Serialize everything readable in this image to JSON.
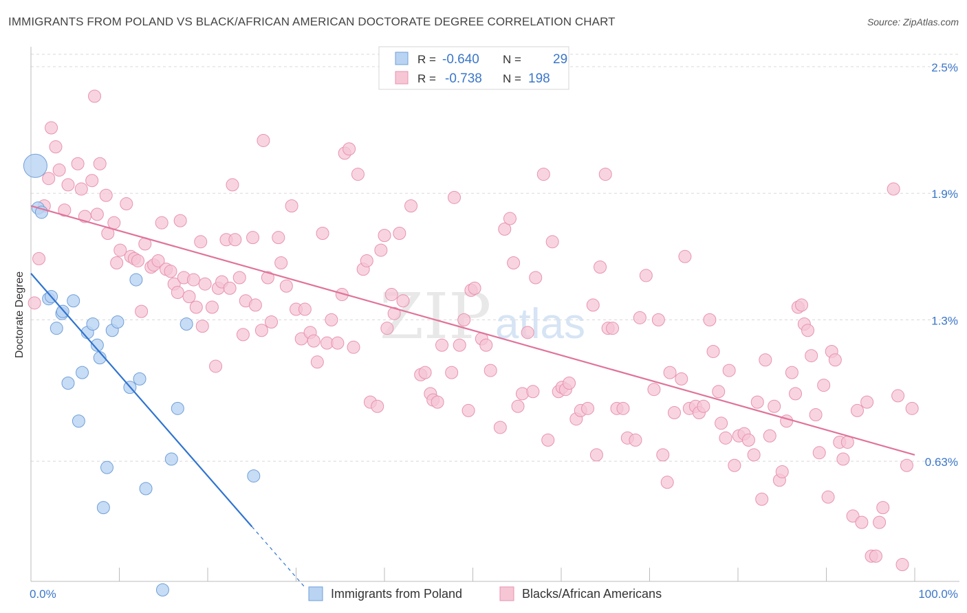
{
  "title": "IMMIGRANTS FROM POLAND VS BLACK/AFRICAN AMERICAN DOCTORATE DEGREE CORRELATION CHART",
  "source": "Source: ZipAtlas.com",
  "watermark": {
    "zip": "ZIP",
    "atlas": "atlas"
  },
  "colors": {
    "poland_fill": "#b9d3f2",
    "poland_stroke": "#6f9fd8",
    "poland_line": "#2f74d0",
    "black_fill": "#f6c6d5",
    "black_stroke": "#e893ae",
    "black_line": "#e0739b",
    "value_text": "#3a76c9",
    "grid": "#d8d8d8"
  },
  "legend": {
    "rows": [
      {
        "r_label": "R =",
        "r_value": "-0.640",
        "n_label": "N =",
        "n_value": "29"
      },
      {
        "r_label": "R =",
        "r_value": "-0.738",
        "n_label": "N =",
        "n_value": "198"
      }
    ]
  },
  "chart_data": {
    "type": "scatter",
    "title": "IMMIGRANTS FROM POLAND VS BLACK/AFRICAN AMERICAN DOCTORATE DEGREE CORRELATION CHART",
    "xlabel": "",
    "ylabel": "Doctorate Degree",
    "xlim": [
      0,
      100
    ],
    "ylim": [
      0,
      2.6
    ],
    "x_tick_labels": [
      "0.0%",
      "100.0%"
    ],
    "y_ticks": [
      0.63,
      1.3,
      1.9,
      2.5
    ],
    "y_tick_labels": [
      "0.63%",
      "1.3%",
      "1.9%",
      "2.5%"
    ],
    "legend_position": "bottom",
    "series": [
      {
        "name": "Immigrants from Poland",
        "r": -0.64,
        "n": 29,
        "trend": {
          "x0": 0,
          "y0": 1.52,
          "x1": 25,
          "y1": 0.32,
          "dash_to_x": 31
        },
        "points": [
          {
            "x": 0.5,
            "y": 2.03,
            "s": 17
          },
          {
            "x": 0.8,
            "y": 1.83,
            "s": 9
          },
          {
            "x": 1.2,
            "y": 1.81,
            "s": 9
          },
          {
            "x": 2.0,
            "y": 1.4,
            "s": 9
          },
          {
            "x": 2.3,
            "y": 1.41,
            "s": 9
          },
          {
            "x": 2.9,
            "y": 1.26,
            "s": 9
          },
          {
            "x": 3.5,
            "y": 1.33,
            "s": 9
          },
          {
            "x": 3.6,
            "y": 1.34,
            "s": 9
          },
          {
            "x": 4.2,
            "y": 1.0,
            "s": 9
          },
          {
            "x": 4.8,
            "y": 1.39,
            "s": 9
          },
          {
            "x": 5.4,
            "y": 0.82,
            "s": 9
          },
          {
            "x": 5.8,
            "y": 1.05,
            "s": 9
          },
          {
            "x": 6.4,
            "y": 1.24,
            "s": 9
          },
          {
            "x": 7.0,
            "y": 1.28,
            "s": 9
          },
          {
            "x": 7.5,
            "y": 1.18,
            "s": 9
          },
          {
            "x": 7.8,
            "y": 1.12,
            "s": 9
          },
          {
            "x": 8.2,
            "y": 0.41,
            "s": 9
          },
          {
            "x": 8.6,
            "y": 0.6,
            "s": 9
          },
          {
            "x": 9.2,
            "y": 1.25,
            "s": 9
          },
          {
            "x": 9.8,
            "y": 1.29,
            "s": 9
          },
          {
            "x": 11.2,
            "y": 0.98,
            "s": 9
          },
          {
            "x": 11.9,
            "y": 1.49,
            "s": 9
          },
          {
            "x": 12.3,
            "y": 1.02,
            "s": 9
          },
          {
            "x": 13.0,
            "y": 0.5,
            "s": 9
          },
          {
            "x": 14.9,
            "y": 0.02,
            "s": 9
          },
          {
            "x": 15.9,
            "y": 0.64,
            "s": 9
          },
          {
            "x": 16.6,
            "y": 0.88,
            "s": 9
          },
          {
            "x": 17.6,
            "y": 1.28,
            "s": 9
          },
          {
            "x": 25.2,
            "y": 0.56,
            "s": 9
          }
        ]
      },
      {
        "name": "Blacks/African Americans",
        "r": -0.738,
        "n": 198,
        "trend": {
          "x0": 0,
          "y0": 1.84,
          "x1": 100,
          "y1": 0.66
        },
        "points": [
          {
            "x": 0.4,
            "y": 1.38
          },
          {
            "x": 0.9,
            "y": 1.59
          },
          {
            "x": 1.5,
            "y": 1.84
          },
          {
            "x": 2.0,
            "y": 1.97
          },
          {
            "x": 2.3,
            "y": 2.21
          },
          {
            "x": 2.8,
            "y": 2.12
          },
          {
            "x": 3.2,
            "y": 2.01
          },
          {
            "x": 3.8,
            "y": 1.82
          },
          {
            "x": 4.2,
            "y": 1.94
          },
          {
            "x": 5.3,
            "y": 2.04
          },
          {
            "x": 5.7,
            "y": 1.92
          },
          {
            "x": 6.1,
            "y": 1.79
          },
          {
            "x": 6.9,
            "y": 1.96
          },
          {
            "x": 7.2,
            "y": 2.36
          },
          {
            "x": 7.5,
            "y": 1.8
          },
          {
            "x": 7.8,
            "y": 2.04
          },
          {
            "x": 8.5,
            "y": 1.89
          },
          {
            "x": 8.7,
            "y": 1.71
          },
          {
            "x": 9.4,
            "y": 1.76
          },
          {
            "x": 9.7,
            "y": 1.57
          },
          {
            "x": 10.1,
            "y": 1.63
          },
          {
            "x": 10.8,
            "y": 1.85
          },
          {
            "x": 11.3,
            "y": 1.6
          },
          {
            "x": 11.7,
            "y": 1.59
          },
          {
            "x": 12.1,
            "y": 1.58
          },
          {
            "x": 12.5,
            "y": 1.34
          },
          {
            "x": 12.9,
            "y": 1.66
          },
          {
            "x": 13.6,
            "y": 1.55
          },
          {
            "x": 13.9,
            "y": 1.56
          },
          {
            "x": 14.4,
            "y": 1.58
          },
          {
            "x": 14.8,
            "y": 1.76
          },
          {
            "x": 15.3,
            "y": 1.54
          },
          {
            "x": 15.8,
            "y": 1.53
          },
          {
            "x": 16.2,
            "y": 1.47
          },
          {
            "x": 16.6,
            "y": 1.43
          },
          {
            "x": 16.9,
            "y": 1.77
          },
          {
            "x": 17.3,
            "y": 1.5
          },
          {
            "x": 17.9,
            "y": 1.41
          },
          {
            "x": 18.4,
            "y": 1.49
          },
          {
            "x": 18.7,
            "y": 1.36
          },
          {
            "x": 19.2,
            "y": 1.67
          },
          {
            "x": 19.4,
            "y": 1.27
          },
          {
            "x": 19.7,
            "y": 1.47
          },
          {
            "x": 20.5,
            "y": 1.36
          },
          {
            "x": 20.9,
            "y": 1.08
          },
          {
            "x": 21.2,
            "y": 1.45
          },
          {
            "x": 21.6,
            "y": 1.48
          },
          {
            "x": 22.1,
            "y": 1.68
          },
          {
            "x": 22.5,
            "y": 1.45
          },
          {
            "x": 22.8,
            "y": 1.94
          },
          {
            "x": 23.1,
            "y": 1.68
          },
          {
            "x": 23.6,
            "y": 1.5
          },
          {
            "x": 24.0,
            "y": 1.23
          },
          {
            "x": 24.3,
            "y": 1.39
          },
          {
            "x": 25.1,
            "y": 1.69
          },
          {
            "x": 25.4,
            "y": 1.37
          },
          {
            "x": 26.1,
            "y": 1.25
          },
          {
            "x": 26.3,
            "y": 2.15
          },
          {
            "x": 26.8,
            "y": 1.5
          },
          {
            "x": 27.2,
            "y": 1.29
          },
          {
            "x": 28.0,
            "y": 1.69
          },
          {
            "x": 28.3,
            "y": 1.57
          },
          {
            "x": 28.9,
            "y": 1.46
          },
          {
            "x": 29.5,
            "y": 1.84
          },
          {
            "x": 30.0,
            "y": 1.35
          },
          {
            "x": 30.6,
            "y": 1.21
          },
          {
            "x": 31.0,
            "y": 1.35
          },
          {
            "x": 31.6,
            "y": 1.24
          },
          {
            "x": 32.0,
            "y": 1.2
          },
          {
            "x": 32.4,
            "y": 1.1
          },
          {
            "x": 33.0,
            "y": 1.71
          },
          {
            "x": 33.5,
            "y": 1.19
          },
          {
            "x": 34.0,
            "y": 1.3
          },
          {
            "x": 34.7,
            "y": 1.19
          },
          {
            "x": 35.2,
            "y": 1.42
          },
          {
            "x": 35.5,
            "y": 2.09
          },
          {
            "x": 36.0,
            "y": 2.11
          },
          {
            "x": 36.5,
            "y": 1.17
          },
          {
            "x": 37.0,
            "y": 1.99
          },
          {
            "x": 37.6,
            "y": 1.54
          },
          {
            "x": 38.0,
            "y": 1.58
          },
          {
            "x": 38.4,
            "y": 0.91
          },
          {
            "x": 39.2,
            "y": 0.89
          },
          {
            "x": 39.6,
            "y": 1.63
          },
          {
            "x": 40.0,
            "y": 1.7
          },
          {
            "x": 40.3,
            "y": 1.26
          },
          {
            "x": 40.8,
            "y": 1.42
          },
          {
            "x": 41.1,
            "y": 1.33
          },
          {
            "x": 41.7,
            "y": 1.71
          },
          {
            "x": 42.1,
            "y": 1.39
          },
          {
            "x": 43.0,
            "y": 1.84
          },
          {
            "x": 44.1,
            "y": 1.04
          },
          {
            "x": 44.6,
            "y": 1.05
          },
          {
            "x": 45.2,
            "y": 0.95
          },
          {
            "x": 45.5,
            "y": 0.92
          },
          {
            "x": 46.0,
            "y": 0.91
          },
          {
            "x": 46.5,
            "y": 1.18
          },
          {
            "x": 47.6,
            "y": 1.05
          },
          {
            "x": 47.9,
            "y": 1.88
          },
          {
            "x": 48.5,
            "y": 1.18
          },
          {
            "x": 49.0,
            "y": 1.3
          },
          {
            "x": 49.5,
            "y": 0.87
          },
          {
            "x": 49.8,
            "y": 1.44
          },
          {
            "x": 50.2,
            "y": 1.45
          },
          {
            "x": 51.0,
            "y": 1.21
          },
          {
            "x": 51.5,
            "y": 1.18
          },
          {
            "x": 52.0,
            "y": 1.06
          },
          {
            "x": 53.1,
            "y": 0.79
          },
          {
            "x": 53.6,
            "y": 1.73
          },
          {
            "x": 54.2,
            "y": 1.78
          },
          {
            "x": 54.6,
            "y": 1.57
          },
          {
            "x": 55.1,
            "y": 0.89
          },
          {
            "x": 55.6,
            "y": 0.95
          },
          {
            "x": 56.2,
            "y": 1.24
          },
          {
            "x": 56.8,
            "y": 0.96
          },
          {
            "x": 57.1,
            "y": 1.5
          },
          {
            "x": 58.0,
            "y": 1.99
          },
          {
            "x": 58.5,
            "y": 0.73
          },
          {
            "x": 59.0,
            "y": 1.67
          },
          {
            "x": 59.7,
            "y": 0.96
          },
          {
            "x": 60.1,
            "y": 0.98
          },
          {
            "x": 60.5,
            "y": 0.97
          },
          {
            "x": 60.9,
            "y": 1.0
          },
          {
            "x": 61.7,
            "y": 0.83
          },
          {
            "x": 62.2,
            "y": 0.87
          },
          {
            "x": 63.0,
            "y": 0.88
          },
          {
            "x": 63.6,
            "y": 1.37
          },
          {
            "x": 64.0,
            "y": 0.66
          },
          {
            "x": 64.4,
            "y": 1.55
          },
          {
            "x": 65.0,
            "y": 1.99
          },
          {
            "x": 65.3,
            "y": 1.26
          },
          {
            "x": 65.8,
            "y": 1.26
          },
          {
            "x": 66.3,
            "y": 0.88
          },
          {
            "x": 67.0,
            "y": 0.88
          },
          {
            "x": 67.5,
            "y": 0.74
          },
          {
            "x": 68.4,
            "y": 0.73
          },
          {
            "x": 68.9,
            "y": 1.31
          },
          {
            "x": 69.6,
            "y": 1.51
          },
          {
            "x": 70.5,
            "y": 0.97
          },
          {
            "x": 71.0,
            "y": 1.3
          },
          {
            "x": 71.5,
            "y": 0.66
          },
          {
            "x": 72.0,
            "y": 0.53
          },
          {
            "x": 72.3,
            "y": 1.05
          },
          {
            "x": 72.8,
            "y": 0.86
          },
          {
            "x": 73.6,
            "y": 1.02
          },
          {
            "x": 74.0,
            "y": 1.6
          },
          {
            "x": 74.5,
            "y": 0.88
          },
          {
            "x": 75.2,
            "y": 0.89
          },
          {
            "x": 75.6,
            "y": 0.86
          },
          {
            "x": 76.1,
            "y": 0.89
          },
          {
            "x": 76.8,
            "y": 1.3
          },
          {
            "x": 77.2,
            "y": 1.15
          },
          {
            "x": 77.8,
            "y": 0.96
          },
          {
            "x": 78.1,
            "y": 0.81
          },
          {
            "x": 78.6,
            "y": 0.74
          },
          {
            "x": 79.0,
            "y": 1.06
          },
          {
            "x": 79.6,
            "y": 0.61
          },
          {
            "x": 80.1,
            "y": 0.75
          },
          {
            "x": 80.7,
            "y": 0.76
          },
          {
            "x": 81.2,
            "y": 0.73
          },
          {
            "x": 81.8,
            "y": 0.66
          },
          {
            "x": 82.2,
            "y": 0.91
          },
          {
            "x": 82.7,
            "y": 0.45
          },
          {
            "x": 83.1,
            "y": 1.11
          },
          {
            "x": 83.6,
            "y": 0.75
          },
          {
            "x": 84.1,
            "y": 0.89
          },
          {
            "x": 84.7,
            "y": 0.54
          },
          {
            "x": 85.0,
            "y": 0.58
          },
          {
            "x": 85.5,
            "y": 0.82
          },
          {
            "x": 86.1,
            "y": 1.05
          },
          {
            "x": 86.5,
            "y": 0.95
          },
          {
            "x": 86.8,
            "y": 1.36
          },
          {
            "x": 87.2,
            "y": 1.37
          },
          {
            "x": 87.5,
            "y": 1.28
          },
          {
            "x": 87.9,
            "y": 1.25
          },
          {
            "x": 88.3,
            "y": 1.13
          },
          {
            "x": 88.8,
            "y": 0.85
          },
          {
            "x": 89.2,
            "y": 0.67
          },
          {
            "x": 89.7,
            "y": 0.99
          },
          {
            "x": 90.2,
            "y": 0.46
          },
          {
            "x": 90.6,
            "y": 1.15
          },
          {
            "x": 91.0,
            "y": 1.11
          },
          {
            "x": 91.5,
            "y": 0.72
          },
          {
            "x": 91.9,
            "y": 0.64
          },
          {
            "x": 92.4,
            "y": 0.72
          },
          {
            "x": 93.0,
            "y": 0.37
          },
          {
            "x": 93.5,
            "y": 0.87
          },
          {
            "x": 94.0,
            "y": 0.34
          },
          {
            "x": 94.6,
            "y": 0.91
          },
          {
            "x": 95.1,
            "y": 0.18
          },
          {
            "x": 95.6,
            "y": 0.18
          },
          {
            "x": 96.0,
            "y": 0.34
          },
          {
            "x": 96.4,
            "y": 0.41
          },
          {
            "x": 97.6,
            "y": 1.92
          },
          {
            "x": 98.1,
            "y": 0.94
          },
          {
            "x": 98.6,
            "y": 0.14
          },
          {
            "x": 99.1,
            "y": 0.61
          },
          {
            "x": 99.7,
            "y": 0.88
          }
        ]
      }
    ]
  }
}
